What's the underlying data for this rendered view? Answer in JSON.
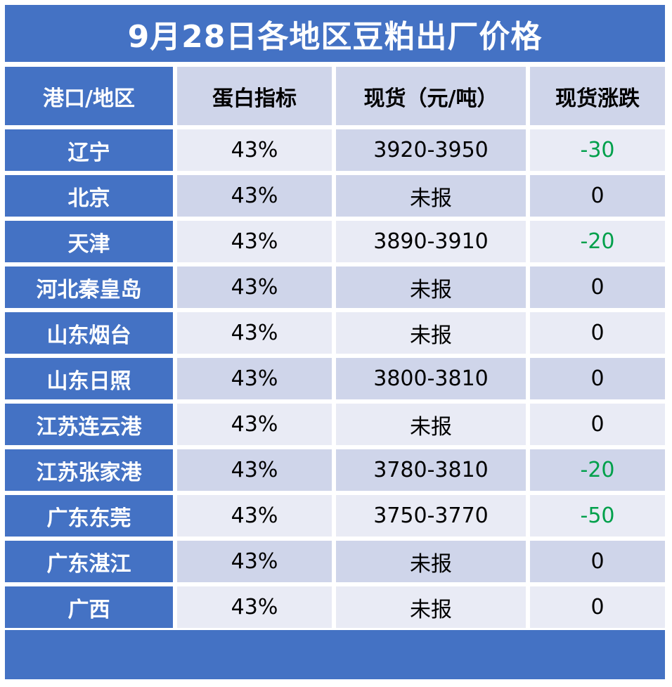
{
  "title": "9月28日各地区豆粕出厂价格",
  "headers": {
    "region": "港口/地区",
    "protein": "蛋白指标",
    "spot": "现货（元/吨）",
    "change": "现货涨跌"
  },
  "rows": [
    {
      "region": "辽宁",
      "protein": "43%",
      "spot": "3920-3950",
      "change": "-30"
    },
    {
      "region": "北京",
      "protein": "43%",
      "spot": "未报",
      "change": "0"
    },
    {
      "region": "天津",
      "protein": "43%",
      "spot": "3890-3910",
      "change": "-20"
    },
    {
      "region": "河北秦皇岛",
      "protein": "43%",
      "spot": "未报",
      "change": "0"
    },
    {
      "region": "山东烟台",
      "protein": "43%",
      "spot": "未报",
      "change": "0"
    },
    {
      "region": "山东日照",
      "protein": "43%",
      "spot": "3800-3810",
      "change": "0"
    },
    {
      "region": "江苏连云港",
      "protein": "43%",
      "spot": "未报",
      "change": "0"
    },
    {
      "region": "江苏张家港",
      "protein": "43%",
      "spot": "3780-3810",
      "change": "-20"
    },
    {
      "region": "广东东莞",
      "protein": "43%",
      "spot": "3750-3770",
      "change": "-50"
    },
    {
      "region": "广东湛江",
      "protein": "43%",
      "spot": "未报",
      "change": "0"
    },
    {
      "region": "广西",
      "protein": "43%",
      "spot": "未报",
      "change": "0"
    }
  ],
  "colors": {
    "header_blue": "#4472c4",
    "row_light": "#e9ebf5",
    "row_dark": "#cfd5ea",
    "decline_green": "#00a04b"
  }
}
